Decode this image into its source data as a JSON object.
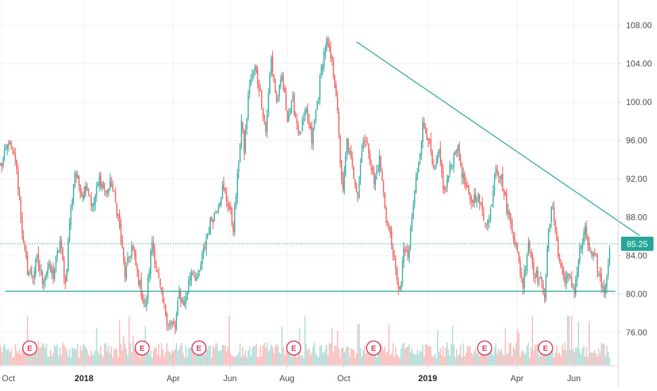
{
  "colors": {
    "up": "#26a69a",
    "down": "#ef5350",
    "vol_up": "#a5d6d1",
    "vol_down": "#f7b2b0",
    "grid": "#eef0f3",
    "axis": "#cfd3d8",
    "level_line": "#26a69a",
    "earnings_border": "#e0385a"
  },
  "chart_data": {
    "type": "candlestick",
    "title": "",
    "xlabel": "",
    "ylabel": "",
    "ylim": [
      73.2,
      110.1
    ],
    "last_price": "85.25",
    "price_ticks": [
      "108.00",
      "104.00",
      "100.00",
      "96.00",
      "92.00",
      "88.00",
      "84.00",
      "80.00",
      "76.00"
    ],
    "price_tick_values": [
      108,
      104,
      100,
      96,
      92,
      88,
      84,
      80,
      76
    ],
    "time_labels": [
      {
        "label": "Oct",
        "bar": 0,
        "bold": false
      },
      {
        "label": "2018",
        "bar": 62,
        "bold": true
      },
      {
        "label": "Apr",
        "bar": 128,
        "bold": false
      },
      {
        "label": "Jun",
        "bar": 170,
        "bold": false
      },
      {
        "label": "Aug",
        "bar": 212,
        "bold": false
      },
      {
        "label": "Oct",
        "bar": 254,
        "bold": false
      },
      {
        "label": "2019",
        "bar": 316,
        "bold": true
      },
      {
        "label": "Apr",
        "bar": 382,
        "bold": false
      },
      {
        "label": "Jun",
        "bar": 424,
        "bold": false
      }
    ],
    "earnings_bars": [
      21,
      104,
      146,
      216,
      275,
      357,
      402
    ],
    "earnings_label": "E",
    "anchors": [
      [
        0,
        93.2
      ],
      [
        6,
        95.8
      ],
      [
        11,
        94.0
      ],
      [
        14,
        90.0
      ],
      [
        17,
        85.0
      ],
      [
        20,
        82.5
      ],
      [
        24,
        82.0
      ],
      [
        27,
        83.6
      ],
      [
        31,
        81.5
      ],
      [
        35,
        82.8
      ],
      [
        39,
        82.0
      ],
      [
        44,
        85.5
      ],
      [
        48,
        81.0
      ],
      [
        51,
        87.5
      ],
      [
        55,
        92.8
      ],
      [
        60,
        90.5
      ],
      [
        64,
        91.5
      ],
      [
        68,
        89.0
      ],
      [
        73,
        92.0
      ],
      [
        78,
        90.5
      ],
      [
        82,
        91.6
      ],
      [
        87,
        88.0
      ],
      [
        92,
        82.0
      ],
      [
        97,
        85.0
      ],
      [
        102,
        81.5
      ],
      [
        107,
        78.5
      ],
      [
        112,
        85.5
      ],
      [
        116,
        82.0
      ],
      [
        120,
        79.0
      ],
      [
        124,
        77.0
      ],
      [
        129,
        76.5
      ],
      [
        132,
        80.0
      ],
      [
        136,
        79.0
      ],
      [
        141,
        82.5
      ],
      [
        146,
        81.5
      ],
      [
        150,
        84.5
      ],
      [
        155,
        87.5
      ],
      [
        159,
        88.6
      ],
      [
        164,
        91.0
      ],
      [
        168,
        89.5
      ],
      [
        172,
        87.0
      ],
      [
        175,
        92.0
      ],
      [
        178,
        98.0
      ],
      [
        180,
        95.0
      ],
      [
        184,
        102.0
      ],
      [
        188,
        103.5
      ],
      [
        192,
        101.0
      ],
      [
        196,
        97.0
      ],
      [
        200,
        104.5
      ],
      [
        204,
        100.0
      ],
      [
        208,
        102.5
      ],
      [
        212,
        98.5
      ],
      [
        216,
        100.0
      ],
      [
        221,
        96.5
      ],
      [
        226,
        99.0
      ],
      [
        230,
        96.0
      ],
      [
        235,
        101.0
      ],
      [
        238,
        104.5
      ],
      [
        241,
        106.2
      ],
      [
        245,
        104.0
      ],
      [
        248,
        101.0
      ],
      [
        251,
        94.0
      ],
      [
        253,
        90.5
      ],
      [
        256,
        96.0
      ],
      [
        260,
        93.0
      ],
      [
        264,
        90.5
      ],
      [
        268,
        96.5
      ],
      [
        272,
        95.0
      ],
      [
        276,
        91.5
      ],
      [
        280,
        94.0
      ],
      [
        285,
        88.0
      ],
      [
        290,
        84.5
      ],
      [
        293,
        81.0
      ],
      [
        296,
        80.8
      ],
      [
        298,
        85.0
      ],
      [
        301,
        83.5
      ],
      [
        304,
        88.0
      ],
      [
        308,
        93.0
      ],
      [
        312,
        97.5
      ],
      [
        316,
        96.5
      ],
      [
        320,
        92.5
      ],
      [
        324,
        94.5
      ],
      [
        328,
        90.5
      ],
      [
        332,
        93.0
      ],
      [
        337,
        95.5
      ],
      [
        342,
        92.0
      ],
      [
        347,
        89.5
      ],
      [
        352,
        90.5
      ],
      [
        357,
        88.0
      ],
      [
        361,
        87.5
      ],
      [
        366,
        93.5
      ],
      [
        370,
        92.0
      ],
      [
        374,
        89.0
      ],
      [
        378,
        87.0
      ],
      [
        382,
        84.0
      ],
      [
        386,
        81.0
      ],
      [
        390,
        85.5
      ],
      [
        394,
        82.5
      ],
      [
        398,
        81.5
      ],
      [
        402,
        80.2
      ],
      [
        405,
        86.5
      ],
      [
        408,
        89.5
      ],
      [
        412,
        84.0
      ],
      [
        416,
        82.0
      ],
      [
        420,
        81.5
      ],
      [
        424,
        80.5
      ],
      [
        428,
        84.5
      ],
      [
        432,
        86.5
      ],
      [
        436,
        84.0
      ],
      [
        440,
        83.5
      ],
      [
        444,
        81.0
      ],
      [
        447,
        80.5
      ],
      [
        450,
        85.2
      ]
    ],
    "trendline": [
      [
        253,
        106.3
      ],
      [
        458,
        86.1
      ]
    ],
    "support_level": 80.3,
    "last_price_level": 85.25
  }
}
